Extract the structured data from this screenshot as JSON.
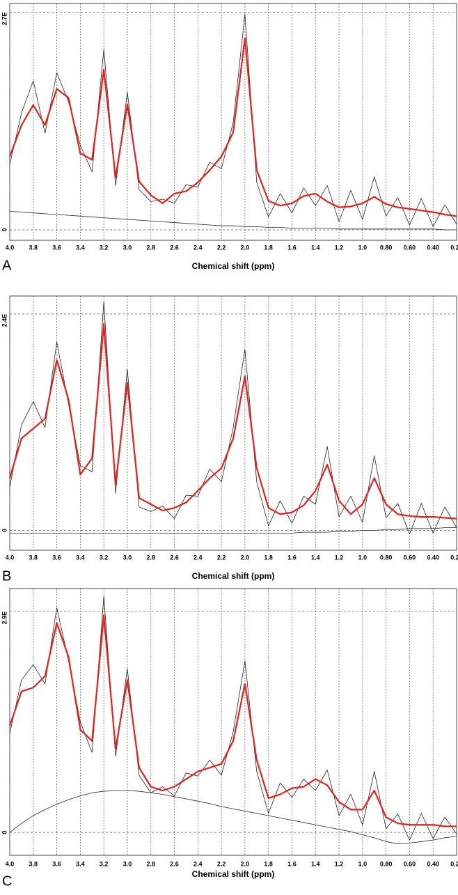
{
  "chart_data": [
    {
      "type": "line",
      "label": "A",
      "xlabel": "Chemical shift (ppm)",
      "x": [
        4.0,
        3.9,
        3.8,
        3.7,
        3.6,
        3.5,
        3.4,
        3.3,
        3.2,
        3.1,
        3.0,
        2.9,
        2.8,
        2.7,
        2.6,
        2.5,
        2.4,
        2.3,
        2.2,
        2.1,
        2.0,
        1.9,
        1.8,
        1.7,
        1.6,
        1.5,
        1.4,
        1.3,
        1.2,
        1.1,
        1.0,
        0.9,
        0.8,
        0.7,
        0.6,
        0.5,
        0.4,
        0.3,
        0.2
      ],
      "xlim": [
        4.0,
        0.2
      ],
      "xticks": [
        {
          "value": 4,
          "label": "4.0"
        },
        3.8,
        3.6,
        3.4,
        3.2,
        {
          "value": 3,
          "label": "3.0"
        },
        2.8,
        2.6,
        2.4,
        2.2,
        {
          "value": 2,
          "label": "2.0"
        },
        1.8,
        1.6,
        1.4,
        1.2,
        {
          "value": 1,
          "label": "1.0"
        },
        {
          "value": 0.8,
          "label": "0.80"
        },
        {
          "value": 0.6,
          "label": "0.60"
        },
        {
          "value": 0.4,
          "label": "0.40"
        },
        {
          "value": 0.2,
          "label": "0.20"
        }
      ],
      "ylim": [
        -0.13,
        2.81
      ],
      "yticks": [
        0,
        {
          "value": 2.7,
          "label": "2.7E"
        }
      ],
      "grid": true,
      "series": [
        {
          "color": "#222222",
          "linewidth": 0.8,
          "values": [
            0.81,
            1.45,
            1.85,
            1.2,
            1.95,
            1.59,
            1.05,
            0.72,
            2.24,
            0.55,
            1.71,
            0.5,
            0.35,
            0.38,
            0.33,
            0.56,
            0.53,
            0.84,
            0.76,
            1.33,
            2.68,
            0.59,
            0.16,
            0.45,
            0.21,
            0.52,
            0.3,
            0.55,
            0.1,
            0.49,
            0.13,
            0.66,
            0.17,
            0.4,
            0.06,
            0.39,
            0.04,
            0.31,
            0.07
          ]
        },
        {
          "color": "#e8201a",
          "linewidth": 2.2,
          "values": [
            0.91,
            1.3,
            1.55,
            1.3,
            1.75,
            1.64,
            0.95,
            0.87,
            1.99,
            0.65,
            1.56,
            0.6,
            0.43,
            0.33,
            0.45,
            0.48,
            0.59,
            0.74,
            0.91,
            1.21,
            2.38,
            0.74,
            0.36,
            0.3,
            0.33,
            0.42,
            0.45,
            0.35,
            0.28,
            0.29,
            0.33,
            0.41,
            0.32,
            0.28,
            0.26,
            0.24,
            0.22,
            0.19,
            0.17
          ]
        },
        {
          "color": "#222222",
          "linewidth": 0.8,
          "values": [
            0.23,
            0.22,
            0.21,
            0.2,
            0.19,
            0.18,
            0.17,
            0.16,
            0.15,
            0.14,
            0.13,
            0.12,
            0.11,
            0.1,
            0.09,
            0.08,
            0.07,
            0.06,
            0.05,
            0.05,
            0.04,
            0.04,
            0.03,
            0.03,
            0.02,
            0.02,
            0.02,
            0.02,
            0.01,
            0.01,
            0.01,
            0.01,
            0.01,
            0.01,
            0.01,
            0.01,
            0.01,
            0,
            0
          ]
        }
      ]
    },
    {
      "type": "line",
      "label": "B",
      "xlabel": "Chemical shift (ppm)",
      "x": [
        4.0,
        3.9,
        3.8,
        3.7,
        3.6,
        3.5,
        3.4,
        3.3,
        3.2,
        3.1,
        3.0,
        2.9,
        2.8,
        2.7,
        2.6,
        2.5,
        2.4,
        2.3,
        2.2,
        2.1,
        2.0,
        1.9,
        1.8,
        1.7,
        1.6,
        1.5,
        1.4,
        1.3,
        1.2,
        1.1,
        1.0,
        0.9,
        0.8,
        0.7,
        0.6,
        0.5,
        0.4,
        0.3,
        0.2
      ],
      "xlim": [
        4.0,
        0.2
      ],
      "xticks": [
        {
          "value": 4,
          "label": "4.0"
        },
        3.8,
        3.6,
        3.4,
        3.2,
        {
          "value": 3,
          "label": "3.0"
        },
        2.8,
        2.6,
        2.4,
        2.2,
        {
          "value": 2,
          "label": "2.0"
        },
        1.8,
        1.6,
        1.4,
        1.2,
        {
          "value": 1,
          "label": "1.0"
        },
        {
          "value": 0.8,
          "label": "0.80"
        },
        {
          "value": 0.6,
          "label": "0.60"
        },
        {
          "value": 0.4,
          "label": "0.40"
        },
        {
          "value": 0.2,
          "label": "0.20"
        }
      ],
      "ylim": [
        -0.22,
        2.6
      ],
      "yticks": [
        0,
        {
          "value": 2.4,
          "label": "2.4E"
        }
      ],
      "grid": true,
      "series": [
        {
          "color": "#222222",
          "linewidth": 0.8,
          "values": [
            0.48,
            1.17,
            1.43,
            1.14,
            2.09,
            1.4,
            0.72,
            0.65,
            2.54,
            0.41,
            1.79,
            0.26,
            0.21,
            0.27,
            0.13,
            0.39,
            0.38,
            0.68,
            0.54,
            1.14,
            2.01,
            0.54,
            0.05,
            0.33,
            0.08,
            0.38,
            0.29,
            0.93,
            0.15,
            0.38,
            0.09,
            0.83,
            0.14,
            0.3,
            -0.04,
            0.3,
            -0.03,
            0.26,
            0.03
          ]
        },
        {
          "color": "#e8201a",
          "linewidth": 2.2,
          "values": [
            0.58,
            1.02,
            1.13,
            1.24,
            1.89,
            1.45,
            0.62,
            0.8,
            2.29,
            0.51,
            1.64,
            0.36,
            0.29,
            0.22,
            0.25,
            0.31,
            0.44,
            0.58,
            0.69,
            1.02,
            1.71,
            0.69,
            0.25,
            0.18,
            0.2,
            0.28,
            0.44,
            0.73,
            0.33,
            0.18,
            0.29,
            0.58,
            0.29,
            0.18,
            0.16,
            0.15,
            0.15,
            0.14,
            0.13
          ]
        },
        {
          "color": "#222222",
          "linewidth": 0.8,
          "values": [
            -0.03,
            -0.03,
            -0.03,
            -0.03,
            -0.03,
            -0.03,
            -0.03,
            -0.03,
            -0.03,
            -0.03,
            -0.03,
            -0.03,
            -0.03,
            -0.03,
            -0.03,
            -0.03,
            -0.03,
            -0.03,
            -0.03,
            -0.03,
            -0.03,
            -0.03,
            -0.03,
            -0.03,
            -0.03,
            -0.02,
            -0.02,
            -0.02,
            -0.01,
            -0.01,
            0,
            0,
            0.01,
            0.01,
            0.02,
            0.02,
            0.02,
            0.03,
            0.03
          ]
        }
      ]
    },
    {
      "type": "line",
      "label": "C",
      "xlabel": "Chemical shift (ppm)",
      "x": [
        4.0,
        3.9,
        3.8,
        3.7,
        3.6,
        3.5,
        3.4,
        3.3,
        3.2,
        3.1,
        3.0,
        2.9,
        2.8,
        2.7,
        2.6,
        2.5,
        2.4,
        2.3,
        2.2,
        2.1,
        2.0,
        1.9,
        1.8,
        1.7,
        1.6,
        1.5,
        1.4,
        1.3,
        1.2,
        1.1,
        1.0,
        0.9,
        0.8,
        0.7,
        0.6,
        0.5,
        0.4,
        0.3,
        0.2
      ],
      "xlim": [
        4.0,
        0.2
      ],
      "xticks": [
        {
          "value": 4,
          "label": "4.0"
        },
        3.8,
        3.6,
        3.4,
        3.2,
        {
          "value": 3,
          "label": "3.0"
        },
        2.8,
        2.6,
        2.4,
        2.2,
        {
          "value": 2,
          "label": "2.0"
        },
        1.8,
        1.6,
        1.4,
        1.2,
        {
          "value": 1,
          "label": "1.0"
        },
        {
          "value": 0.8,
          "label": "0.80"
        },
        {
          "value": 0.6,
          "label": "0.60"
        },
        {
          "value": 0.4,
          "label": "0.40"
        },
        {
          "value": 0.2,
          "label": "0.20"
        }
      ],
      "ylim": [
        -0.3,
        3.2
      ],
      "yticks": [
        0,
        {
          "value": 2.9,
          "label": "2.9E"
        }
      ],
      "grid": true,
      "series": [
        {
          "color": "#222222",
          "linewidth": 0.8,
          "values": [
            1.3,
            2.0,
            2.2,
            1.95,
            2.95,
            2.25,
            1.45,
            1.05,
            3.1,
            1.0,
            2.15,
            0.75,
            0.52,
            0.6,
            0.48,
            0.78,
            0.74,
            0.95,
            0.75,
            1.32,
            2.25,
            0.8,
            0.25,
            0.65,
            0.46,
            0.7,
            0.55,
            0.82,
            0.22,
            0.5,
            0.1,
            0.8,
            0.05,
            0.24,
            -0.1,
            0.25,
            -0.08,
            0.2,
            -0.02
          ]
        },
        {
          "color": "#e8201a",
          "linewidth": 2.2,
          "values": [
            1.4,
            1.85,
            1.9,
            2.05,
            2.75,
            2.3,
            1.35,
            1.2,
            2.85,
            1.1,
            2.0,
            0.85,
            0.6,
            0.55,
            0.6,
            0.7,
            0.8,
            0.85,
            0.9,
            1.2,
            1.95,
            0.95,
            0.45,
            0.5,
            0.58,
            0.6,
            0.7,
            0.62,
            0.4,
            0.3,
            0.3,
            0.55,
            0.2,
            0.12,
            0.1,
            0.1,
            0.1,
            0.08,
            0.08
          ]
        },
        {
          "color": "#222222",
          "linewidth": 0.8,
          "values": [
            0,
            0.12,
            0.22,
            0.3,
            0.37,
            0.43,
            0.48,
            0.52,
            0.54,
            0.55,
            0.55,
            0.54,
            0.52,
            0.5,
            0.47,
            0.44,
            0.41,
            0.38,
            0.34,
            0.31,
            0.28,
            0.25,
            0.22,
            0.19,
            0.16,
            0.13,
            0.1,
            0.07,
            0.04,
            0.01,
            -0.03,
            -0.07,
            -0.12,
            -0.15,
            -0.14,
            -0.12,
            -0.1,
            -0.07,
            -0.05
          ]
        }
      ]
    }
  ]
}
